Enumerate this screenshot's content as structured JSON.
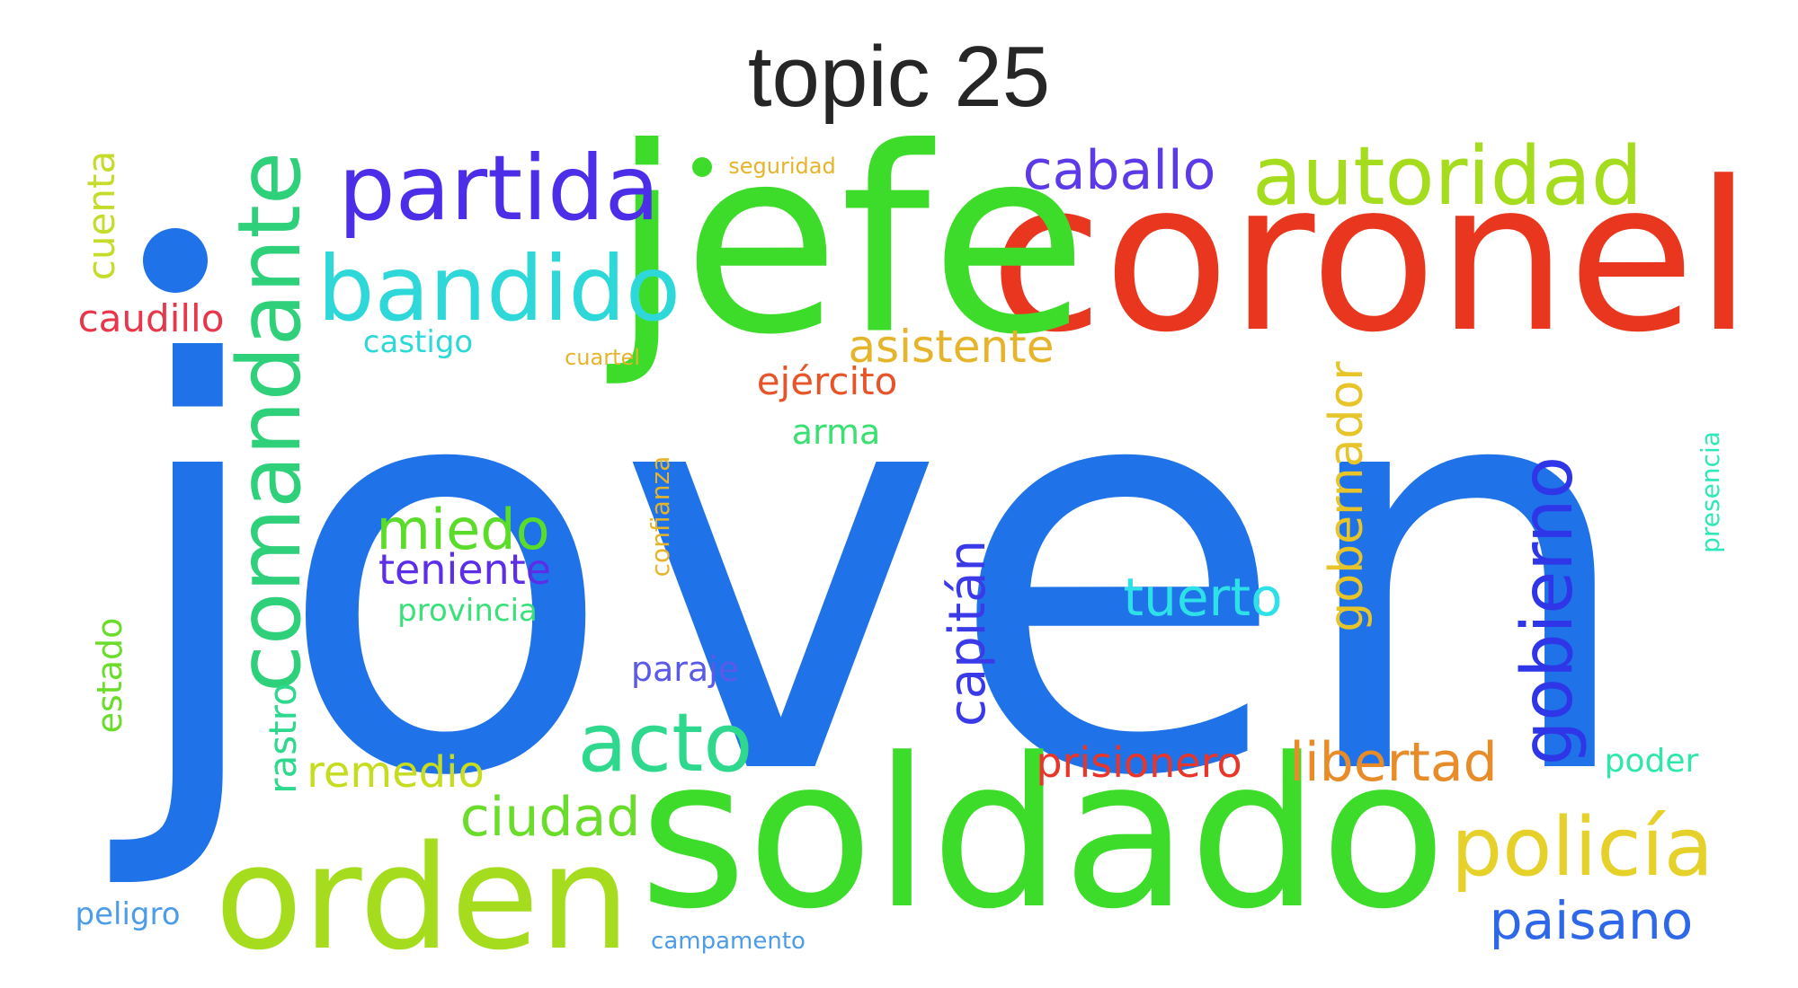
{
  "title": "topic 25",
  "words": [
    {
      "text": "joven",
      "color": "#1f72e8",
      "vertical": false
    },
    {
      "text": "soldado",
      "color": "#3ddc2a",
      "vertical": false
    },
    {
      "text": "coronel",
      "color": "#e8361f",
      "vertical": false
    },
    {
      "text": "jefe",
      "color": "#3ddc2a",
      "vertical": false
    },
    {
      "text": "orden",
      "color": "#a6dc1e",
      "vertical": false
    },
    {
      "text": "comandante",
      "color": "#2ed07a",
      "vertical": true
    },
    {
      "text": "partida",
      "color": "#4c2ee8",
      "vertical": false
    },
    {
      "text": "bandido",
      "color": "#2ed8d8",
      "vertical": false
    },
    {
      "text": "autoridad",
      "color": "#a6dc1e",
      "vertical": false
    },
    {
      "text": "policía",
      "color": "#e6d02a",
      "vertical": false
    },
    {
      "text": "acto",
      "color": "#2ed88c",
      "vertical": false
    },
    {
      "text": "gobierno",
      "color": "#2e36e8",
      "vertical": true
    },
    {
      "text": "caballo",
      "color": "#5c3ae8",
      "vertical": false
    },
    {
      "text": "libertad",
      "color": "#e88c2a",
      "vertical": false
    },
    {
      "text": "paisano",
      "color": "#2e68e8",
      "vertical": false
    },
    {
      "text": "tuerto",
      "color": "#2ee0e8",
      "vertical": false
    },
    {
      "text": "miedo",
      "color": "#5cdc2a",
      "vertical": false
    },
    {
      "text": "ciudad",
      "color": "#6adc2a",
      "vertical": false
    },
    {
      "text": "capitán",
      "color": "#3a3ae8",
      "vertical": true
    },
    {
      "text": "gobernador",
      "color": "#e6c42a",
      "vertical": true
    },
    {
      "text": "prisionero",
      "color": "#e8362a",
      "vertical": false
    },
    {
      "text": "asistente",
      "color": "#e6b42a",
      "vertical": false
    },
    {
      "text": "remedio",
      "color": "#c6dc1e",
      "vertical": false
    },
    {
      "text": "teniente",
      "color": "#5c2ee8",
      "vertical": false
    },
    {
      "text": "rastro",
      "color": "#2ed88c",
      "vertical": true
    },
    {
      "text": "cuenta",
      "color": "#c6dc2a",
      "vertical": true
    },
    {
      "text": "caudillo",
      "color": "#e8364a",
      "vertical": false
    },
    {
      "text": "ejército",
      "color": "#e8542a",
      "vertical": false
    },
    {
      "text": "paraje",
      "color": "#5a5ae8",
      "vertical": false
    },
    {
      "text": "estado",
      "color": "#6adc2a",
      "vertical": true
    },
    {
      "text": "arma",
      "color": "#3ae072",
      "vertical": false
    },
    {
      "text": "poder",
      "color": "#2ee8a8",
      "vertical": false
    },
    {
      "text": "castigo",
      "color": "#2ed8d8",
      "vertical": false
    },
    {
      "text": "confianza",
      "color": "#e6b42a",
      "vertical": true
    },
    {
      "text": "provincia",
      "color": "#3ae07a",
      "vertical": false
    },
    {
      "text": "presencia",
      "color": "#2ee8b8",
      "vertical": true
    },
    {
      "text": "peligro",
      "color": "#4c9ce8",
      "vertical": false
    },
    {
      "text": "campamento",
      "color": "#4c9ce8",
      "vertical": false
    },
    {
      "text": "cuartel",
      "color": "#e6b42a",
      "vertical": false
    },
    {
      "text": "seguridad",
      "color": "#e6b42a",
      "vertical": false
    }
  ]
}
